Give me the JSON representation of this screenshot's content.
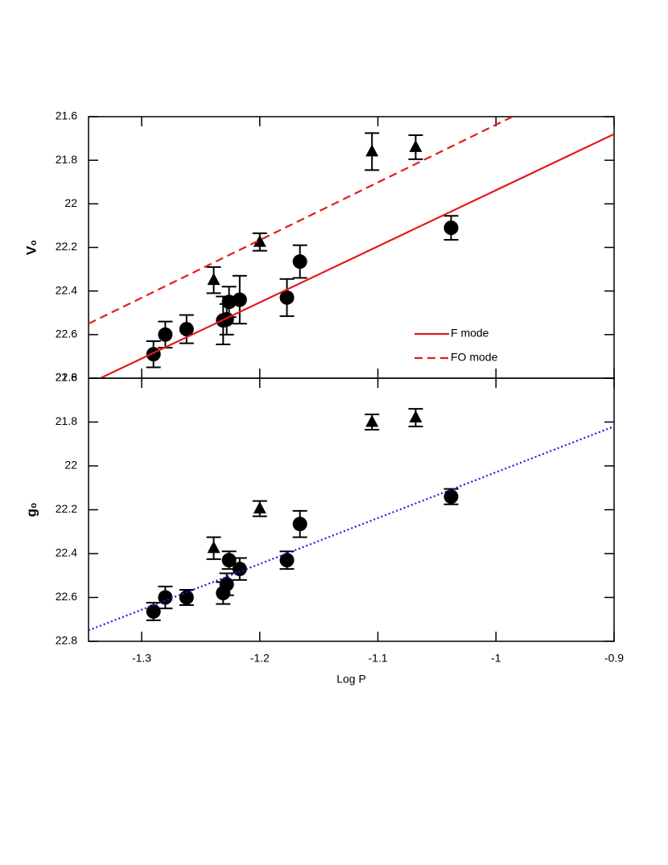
{
  "chart_data": [
    {
      "type": "scatter",
      "ylabel": "V₀",
      "xlim": [
        -1.345,
        -0.9
      ],
      "xticks": [
        -1.3,
        -1.2,
        -1.1,
        -1,
        -0.9
      ],
      "ylim": [
        22.8,
        21.6
      ],
      "yticks": [
        21.6,
        21.8,
        22,
        22.2,
        22.4,
        22.6,
        22.8
      ],
      "legend": "lower right",
      "series": [
        {
          "marker": "circle",
          "color": "#000000",
          "x": [
            -1.29,
            -1.28,
            -1.262,
            -1.231,
            -1.228,
            -1.226,
            -1.217,
            -1.177,
            -1.166,
            -1.038
          ],
          "values": [
            22.69,
            22.6,
            22.575,
            22.535,
            22.53,
            22.45,
            22.44,
            22.43,
            22.265,
            22.11
          ],
          "errors": [
            0.06,
            0.06,
            0.065,
            0.11,
            0.07,
            0.07,
            0.11,
            0.085,
            0.075,
            0.055
          ]
        },
        {
          "marker": "triangle",
          "color": "#000000",
          "x": [
            -1.239,
            -1.2,
            -1.105,
            -1.068
          ],
          "values": [
            22.35,
            22.175,
            21.76,
            21.74
          ],
          "errors": [
            0.06,
            0.04,
            0.085,
            0.055
          ]
        },
        {
          "name": "F mode",
          "marker": "line",
          "color": "#e41a1c",
          "style": "solid",
          "x": [
            -1.335,
            -0.9
          ],
          "values": [
            22.8,
            21.68
          ]
        },
        {
          "name": "FO mode",
          "marker": "line",
          "color": "#e41a1c",
          "style": "dashed",
          "x": [
            -1.345,
            -0.986
          ],
          "values": [
            22.55,
            21.6
          ]
        }
      ]
    },
    {
      "type": "scatter",
      "ylabel": "g₀",
      "xlabel": "Log P",
      "xlim": [
        -1.345,
        -0.9
      ],
      "xticks": [
        -1.3,
        -1.2,
        -1.1,
        -1,
        -0.9
      ],
      "ylim": [
        22.8,
        21.6
      ],
      "yticks": [
        21.6,
        21.8,
        22,
        22.2,
        22.4,
        22.6,
        22.8
      ],
      "series": [
        {
          "marker": "circle",
          "color": "#000000",
          "x": [
            -1.29,
            -1.28,
            -1.262,
            -1.231,
            -1.228,
            -1.226,
            -1.217,
            -1.177,
            -1.166,
            -1.038
          ],
          "values": [
            22.664,
            22.6,
            22.6,
            22.58,
            22.54,
            22.43,
            22.47,
            22.43,
            22.265,
            22.14
          ],
          "errors": [
            0.04,
            0.05,
            0.035,
            0.05,
            0.05,
            0.04,
            0.05,
            0.04,
            0.06,
            0.035
          ]
        },
        {
          "marker": "triangle",
          "color": "#000000",
          "x": [
            -1.239,
            -1.2,
            -1.105,
            -1.068
          ],
          "values": [
            22.375,
            22.195,
            21.8,
            21.78
          ],
          "errors": [
            0.05,
            0.035,
            0.035,
            0.04
          ]
        },
        {
          "marker": "line",
          "color": "#1a1adc",
          "style": "dotted",
          "x": [
            -1.345,
            -0.9
          ],
          "values": [
            22.75,
            21.82
          ]
        }
      ]
    }
  ]
}
